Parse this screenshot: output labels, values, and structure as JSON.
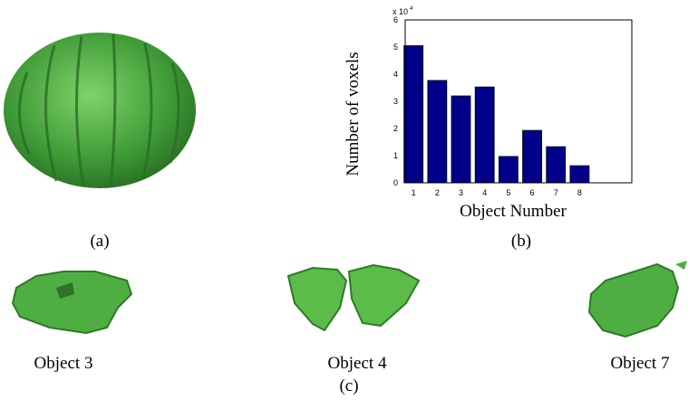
{
  "chart_data": {
    "type": "bar",
    "x": [
      1,
      2,
      3,
      4,
      5,
      6,
      7,
      8
    ],
    "values": [
      5.05,
      3.77,
      3.2,
      3.53,
      0.97,
      1.93,
      1.33,
      0.63
    ],
    "color": "#00008b",
    "xlim": [
      0.65,
      10.2
    ],
    "xticks": [
      1,
      2,
      3,
      4,
      5,
      6,
      7,
      8
    ],
    "ylim": [
      0,
      6
    ],
    "yticks": [
      0,
      1,
      2,
      3,
      4,
      5,
      6
    ],
    "xlabel": "Object Number",
    "ylabel": "Number of voxels",
    "y_multiplier": "x 10",
    "y_multiplier_exponent": "4"
  },
  "captions": {
    "a": "(a)",
    "b": "(b)",
    "c": "(c)"
  },
  "objects": [
    {
      "label": "Object 3"
    },
    {
      "label": "Object 4"
    },
    {
      "label": "Object 7"
    }
  ]
}
